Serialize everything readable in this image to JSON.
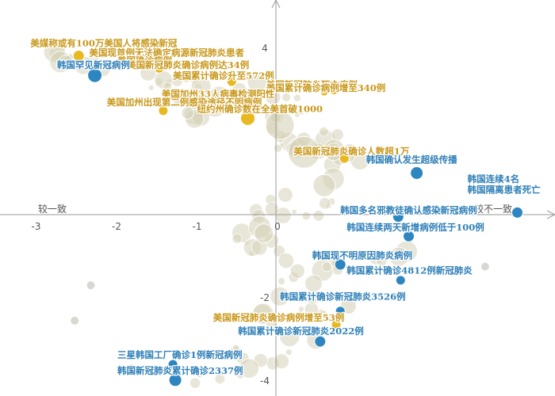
{
  "colors": {
    "korea": "#2e86c1",
    "usa": "#e8b820",
    "usa_label": "#c9981a",
    "korea_label": "#2e7fb8",
    "neutral": "#d6d2b8",
    "axis": "#9a9a9a"
  },
  "axes": {
    "left_label": "较一致",
    "right_label": "较不一致"
  },
  "chart_data": {
    "type": "scatter",
    "xlim": [
      -3,
      3.3
    ],
    "ylim": [
      -4,
      4.8
    ],
    "x_ticks": [
      -3,
      -2,
      -1,
      0,
      1,
      2
    ],
    "y_ticks": [
      4,
      -2,
      -4
    ],
    "legend": "none",
    "grid": false,
    "series": [
      {
        "group": "usa",
        "points": [
          {
            "label": "美媒称或有100万美国人将感染新冠",
            "x": -2.75,
            "y": 4.05,
            "r": 0,
            "lx": -3.05,
            "ly": 4.05
          },
          {
            "label": "美国现首例无法确定病源新冠肺炎患者",
            "x": -2.45,
            "y": 3.82,
            "r": 7,
            "lx": -2.32,
            "ly": 3.82
          },
          {
            "label": "美国确诊病例",
            "x": -1.55,
            "y": 3.63,
            "r": 6,
            "lx": -1.97,
            "ly": 3.63
          },
          {
            "label": "美国新冠肺炎确诊病例达34例",
            "x": -1.45,
            "y": 3.52,
            "r": 6,
            "lx": -1.85,
            "ly": 3.52
          },
          {
            "label": "美国累计确诊升至572例",
            "x": -0.55,
            "y": 3.2,
            "r": 6,
            "lx": -1.28,
            "ly": 3.27
          },
          {
            "label": "美国新冠肺炎死亡病例",
            "x": 0.72,
            "y": 3.0,
            "r": 6,
            "lx": -0.12,
            "ly": 3.05
          },
          {
            "label": "美国累计确诊病例增至340例",
            "x": 0.6,
            "y": 2.95,
            "r": 5,
            "lx": -0.12,
            "ly": 2.97
          },
          {
            "label": "美国加州33人病毒检测阳性",
            "x": -0.85,
            "y": 2.72,
            "r": 5,
            "lx": -1.42,
            "ly": 2.83
          },
          {
            "label": "美国加州出现第二例感染途径不明病例",
            "x": -1.4,
            "y": 2.5,
            "r": 6,
            "lx": -2.1,
            "ly": 2.63
          },
          {
            "label": "纽约州确诊数在全美首破1000",
            "x": -0.35,
            "y": 2.32,
            "r": 9,
            "lx": -0.98,
            "ly": 2.47
          },
          {
            "label": "美国新冠肺炎确诊人数超1万",
            "x": 0.85,
            "y": 1.35,
            "r": 6,
            "lx": 0.22,
            "ly": 1.45
          },
          {
            "label": "美国新冠肺炎确诊病例增至53例",
            "x": 0.75,
            "y": -2.65,
            "r": 6,
            "lx": -0.78,
            "ly": -2.55
          }
        ]
      },
      {
        "group": "korea",
        "points": [
          {
            "label": "韩国罕见新冠病例",
            "x": -2.25,
            "y": 3.35,
            "r": 9,
            "lx": -2.72,
            "ly": 3.52
          },
          {
            "label": "韩国确认发生超级传播",
            "x": 1.75,
            "y": 1.0,
            "r": 8,
            "lx": 1.12,
            "ly": 1.25
          },
          {
            "label": "韩国连续4名",
            "x": 2.85,
            "y": 0.75,
            "r": 0,
            "lx": 2.38,
            "ly": 0.78
          },
          {
            "label": "韩国隔离患者死亡",
            "x": 3.0,
            "y": 0.05,
            "r": 7,
            "lx": 2.38,
            "ly": 0.52
          },
          {
            "label": "韩国多名邪教徒确认感染新冠病例",
            "x": 1.52,
            "y": -0.05,
            "r": 7,
            "lx": 0.8,
            "ly": 0.03
          },
          {
            "label": "韩国连续两天新增病例低于100例",
            "x": 1.65,
            "y": -0.52,
            "r": 7,
            "lx": 0.88,
            "ly": -0.38
          },
          {
            "label": "韩国现不明原因肺炎病例",
            "x": 0.8,
            "y": -1.2,
            "r": 7,
            "lx": 0.45,
            "ly": -1.06
          },
          {
            "label": "韩国累计确诊4812例新冠肺炎",
            "x": 1.55,
            "y": -1.58,
            "r": 6,
            "lx": 0.88,
            "ly": -1.42
          },
          {
            "label": "韩国累计确诊新冠肺炎3526例",
            "x": 0.8,
            "y": -2.32,
            "r": 6,
            "lx": 0.05,
            "ly": -2.05
          },
          {
            "label": "韩国累计确诊新冠肺炎2022例",
            "x": 0.55,
            "y": -3.05,
            "r": 7,
            "lx": -0.47,
            "ly": -2.88
          },
          {
            "label": "三星韩国工厂确诊1例新冠病例",
            "x": -1.28,
            "y": -3.6,
            "r": 6,
            "lx": -1.97,
            "ly": -3.45
          },
          {
            "label": "韩国新冠肺炎累计确诊2337例",
            "x": -1.25,
            "y": -3.98,
            "r": 8,
            "lx": -1.97,
            "ly": -3.83
          }
        ]
      }
    ]
  }
}
